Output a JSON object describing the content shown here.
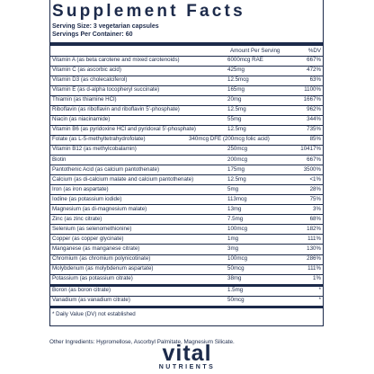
{
  "header": {
    "title": "Supplement Facts",
    "serving_size": "Serving Size: 3 vegetarian capsules",
    "servings_per_container": "Servings Per Container: 60"
  },
  "table": {
    "columns": [
      "Amount Per Serving",
      "%DV"
    ],
    "rows": [
      [
        "Vitamin A (as beta carotene and mixed carotenoids)",
        "6000mcg RAE",
        "667%"
      ],
      [
        "Vitamin C (as ascorbic acid)",
        "425mg",
        "472%"
      ],
      [
        "Vitamin D3 (as cholecalciferol)",
        "12.5mcg",
        "63%"
      ],
      [
        "Vitamin E (as d-alpha tocopheryl succinate)",
        "165mg",
        "1100%"
      ],
      [
        "Thiamin (as thiamine HCl)",
        "20mg",
        "1667%"
      ],
      [
        "Riboflavin (as riboflavin and riboflavin 5'-phosphate)",
        "12.5mg",
        "962%"
      ],
      [
        "Niacin (as niacinamide)",
        "55mg",
        "344%"
      ],
      [
        "Vitamin B6 (as pyridoxine HCl and pyridoxal 5'-phosphate)",
        "12.5mg",
        "735%"
      ],
      [
        "Folate (as L-5-methyltetrahydrofolate)",
        "340mcg DFE (200mcg folic acid)",
        "85%"
      ],
      [
        "Vitamin B12 (as methylcobalamin)",
        "250mcg",
        "10417%"
      ],
      [
        "Biotin",
        "200mcg",
        "667%"
      ],
      [
        "Pantothenic Acid (as calcium pantothenate)",
        "175mg",
        "3500%"
      ],
      [
        "Calcium (as di-calcium malate and calcium pantothenate)",
        "12.5mg",
        "<1%"
      ],
      [
        "Iron (as iron aspartate)",
        "5mg",
        "28%"
      ],
      [
        "Iodine (as potassium iodide)",
        "113mcg",
        "75%"
      ],
      [
        "Magnesium (as di-magnesium malate)",
        "13mg",
        "3%"
      ],
      [
        "Zinc (as zinc citrate)",
        "7.5mg",
        "68%"
      ],
      [
        "Selenium (as selenomethionine)",
        "100mcg",
        "182%"
      ],
      [
        "Copper (as copper glycinate)",
        "1mg",
        "111%"
      ],
      [
        "Manganese (as manganese citrate)",
        "3mg",
        "130%"
      ],
      [
        "Chromium (as chromium polynicotinate)",
        "100mcg",
        "286%"
      ],
      [
        "Molybdenum (as molybdenum aspartate)",
        "50mcg",
        "111%"
      ],
      [
        "Potassium (as potassium citrate)",
        "38mg",
        "1%"
      ]
    ],
    "extra_rows": [
      [
        "Boron (as boron citrate)",
        "1.5mg",
        "*"
      ],
      [
        "Vanadium (as vanadium citrate)",
        "50mcg",
        "*"
      ]
    ],
    "footnote": "* Daily Value (DV) not established"
  },
  "other_ingredients": "Other Ingredients: Hypromellose, Ascorbyl Palmitate, Magnesium Silicate.",
  "logo": {
    "brand": "vital",
    "tagline": "NUTRIENTS"
  }
}
